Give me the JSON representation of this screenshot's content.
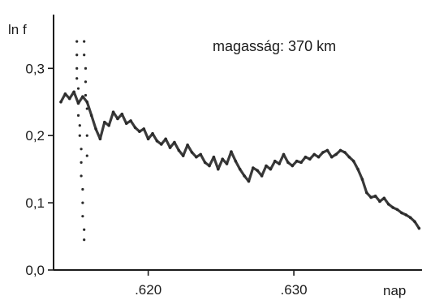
{
  "chart_data": {
    "type": "scatter",
    "ylabel": "ln f",
    "xlabel": "nap",
    "annotation": "magasság: 370 km",
    "xlim": [
      0.6135,
      0.6388
    ],
    "ylim": [
      0.0,
      0.38
    ],
    "x_ticks": [
      0.62,
      0.63
    ],
    "x_tick_labels": [
      ".620",
      ".630"
    ],
    "y_ticks": [
      0.0,
      0.1,
      0.2,
      0.3
    ],
    "y_tick_labels": [
      "0,0",
      "0,1",
      "0,2",
      "0,3"
    ],
    "grid": false,
    "colors": {
      "axis": "#1a1a1a",
      "series": "#3a3a3a"
    },
    "series": [
      {
        "x": [
          0.614,
          0.6143,
          0.6146,
          0.6149,
          0.6152,
          0.6155,
          0.6158,
          0.6161,
          0.6164,
          0.6167,
          0.617,
          0.6173,
          0.6176,
          0.6179,
          0.6182,
          0.6185,
          0.6188,
          0.6191,
          0.6194,
          0.6197,
          0.62,
          0.6203,
          0.6206,
          0.6209,
          0.6212,
          0.6215,
          0.6218,
          0.6221,
          0.6224,
          0.6227,
          0.623,
          0.6233,
          0.6236,
          0.6239,
          0.6242,
          0.6245,
          0.6248,
          0.6251,
          0.6254,
          0.6257,
          0.626,
          0.6263,
          0.6266,
          0.6269,
          0.6272,
          0.6275,
          0.6278,
          0.6281,
          0.6284,
          0.6287,
          0.629,
          0.6293,
          0.6296,
          0.6299,
          0.6302,
          0.6305,
          0.6308,
          0.6311,
          0.6314,
          0.6317,
          0.632,
          0.6323,
          0.6326,
          0.6329,
          0.6332,
          0.6335,
          0.6338,
          0.6341,
          0.6344,
          0.6347,
          0.635,
          0.6353,
          0.6356,
          0.6359,
          0.6362,
          0.6365,
          0.6368,
          0.6371,
          0.6374,
          0.6377,
          0.638,
          0.6383,
          0.6386
        ],
        "y": [
          0.25,
          0.262,
          0.255,
          0.265,
          0.248,
          0.258,
          0.25,
          0.23,
          0.21,
          0.195,
          0.22,
          0.215,
          0.235,
          0.225,
          0.232,
          0.218,
          0.222,
          0.212,
          0.206,
          0.21,
          0.195,
          0.203,
          0.192,
          0.187,
          0.195,
          0.182,
          0.19,
          0.178,
          0.17,
          0.186,
          0.175,
          0.168,
          0.172,
          0.16,
          0.155,
          0.168,
          0.15,
          0.165,
          0.158,
          0.176,
          0.162,
          0.15,
          0.14,
          0.132,
          0.152,
          0.148,
          0.14,
          0.155,
          0.15,
          0.162,
          0.158,
          0.172,
          0.16,
          0.155,
          0.162,
          0.16,
          0.168,
          0.165,
          0.172,
          0.168,
          0.175,
          0.178,
          0.168,
          0.172,
          0.178,
          0.175,
          0.168,
          0.162,
          0.15,
          0.135,
          0.115,
          0.108,
          0.11,
          0.102,
          0.107,
          0.098,
          0.093,
          0.09,
          0.085,
          0.082,
          0.078,
          0.072,
          0.062
        ]
      },
      {
        "x": [
          0.6151,
          0.6151,
          0.6151,
          0.6151,
          0.6152,
          0.6152,
          0.6152,
          0.6153,
          0.6153,
          0.6154,
          0.6154,
          0.6154,
          0.6155,
          0.6155,
          0.6155,
          0.6156,
          0.6156,
          0.6156,
          0.6156,
          0.6157,
          0.6157,
          0.6157,
          0.6158,
          0.6158,
          0.6158
        ],
        "y": [
          0.34,
          0.32,
          0.3,
          0.285,
          0.27,
          0.25,
          0.23,
          0.215,
          0.2,
          0.18,
          0.16,
          0.14,
          0.12,
          0.1,
          0.08,
          0.06,
          0.045,
          0.34,
          0.32,
          0.3,
          0.28,
          0.26,
          0.24,
          0.2,
          0.17
        ]
      }
    ]
  }
}
